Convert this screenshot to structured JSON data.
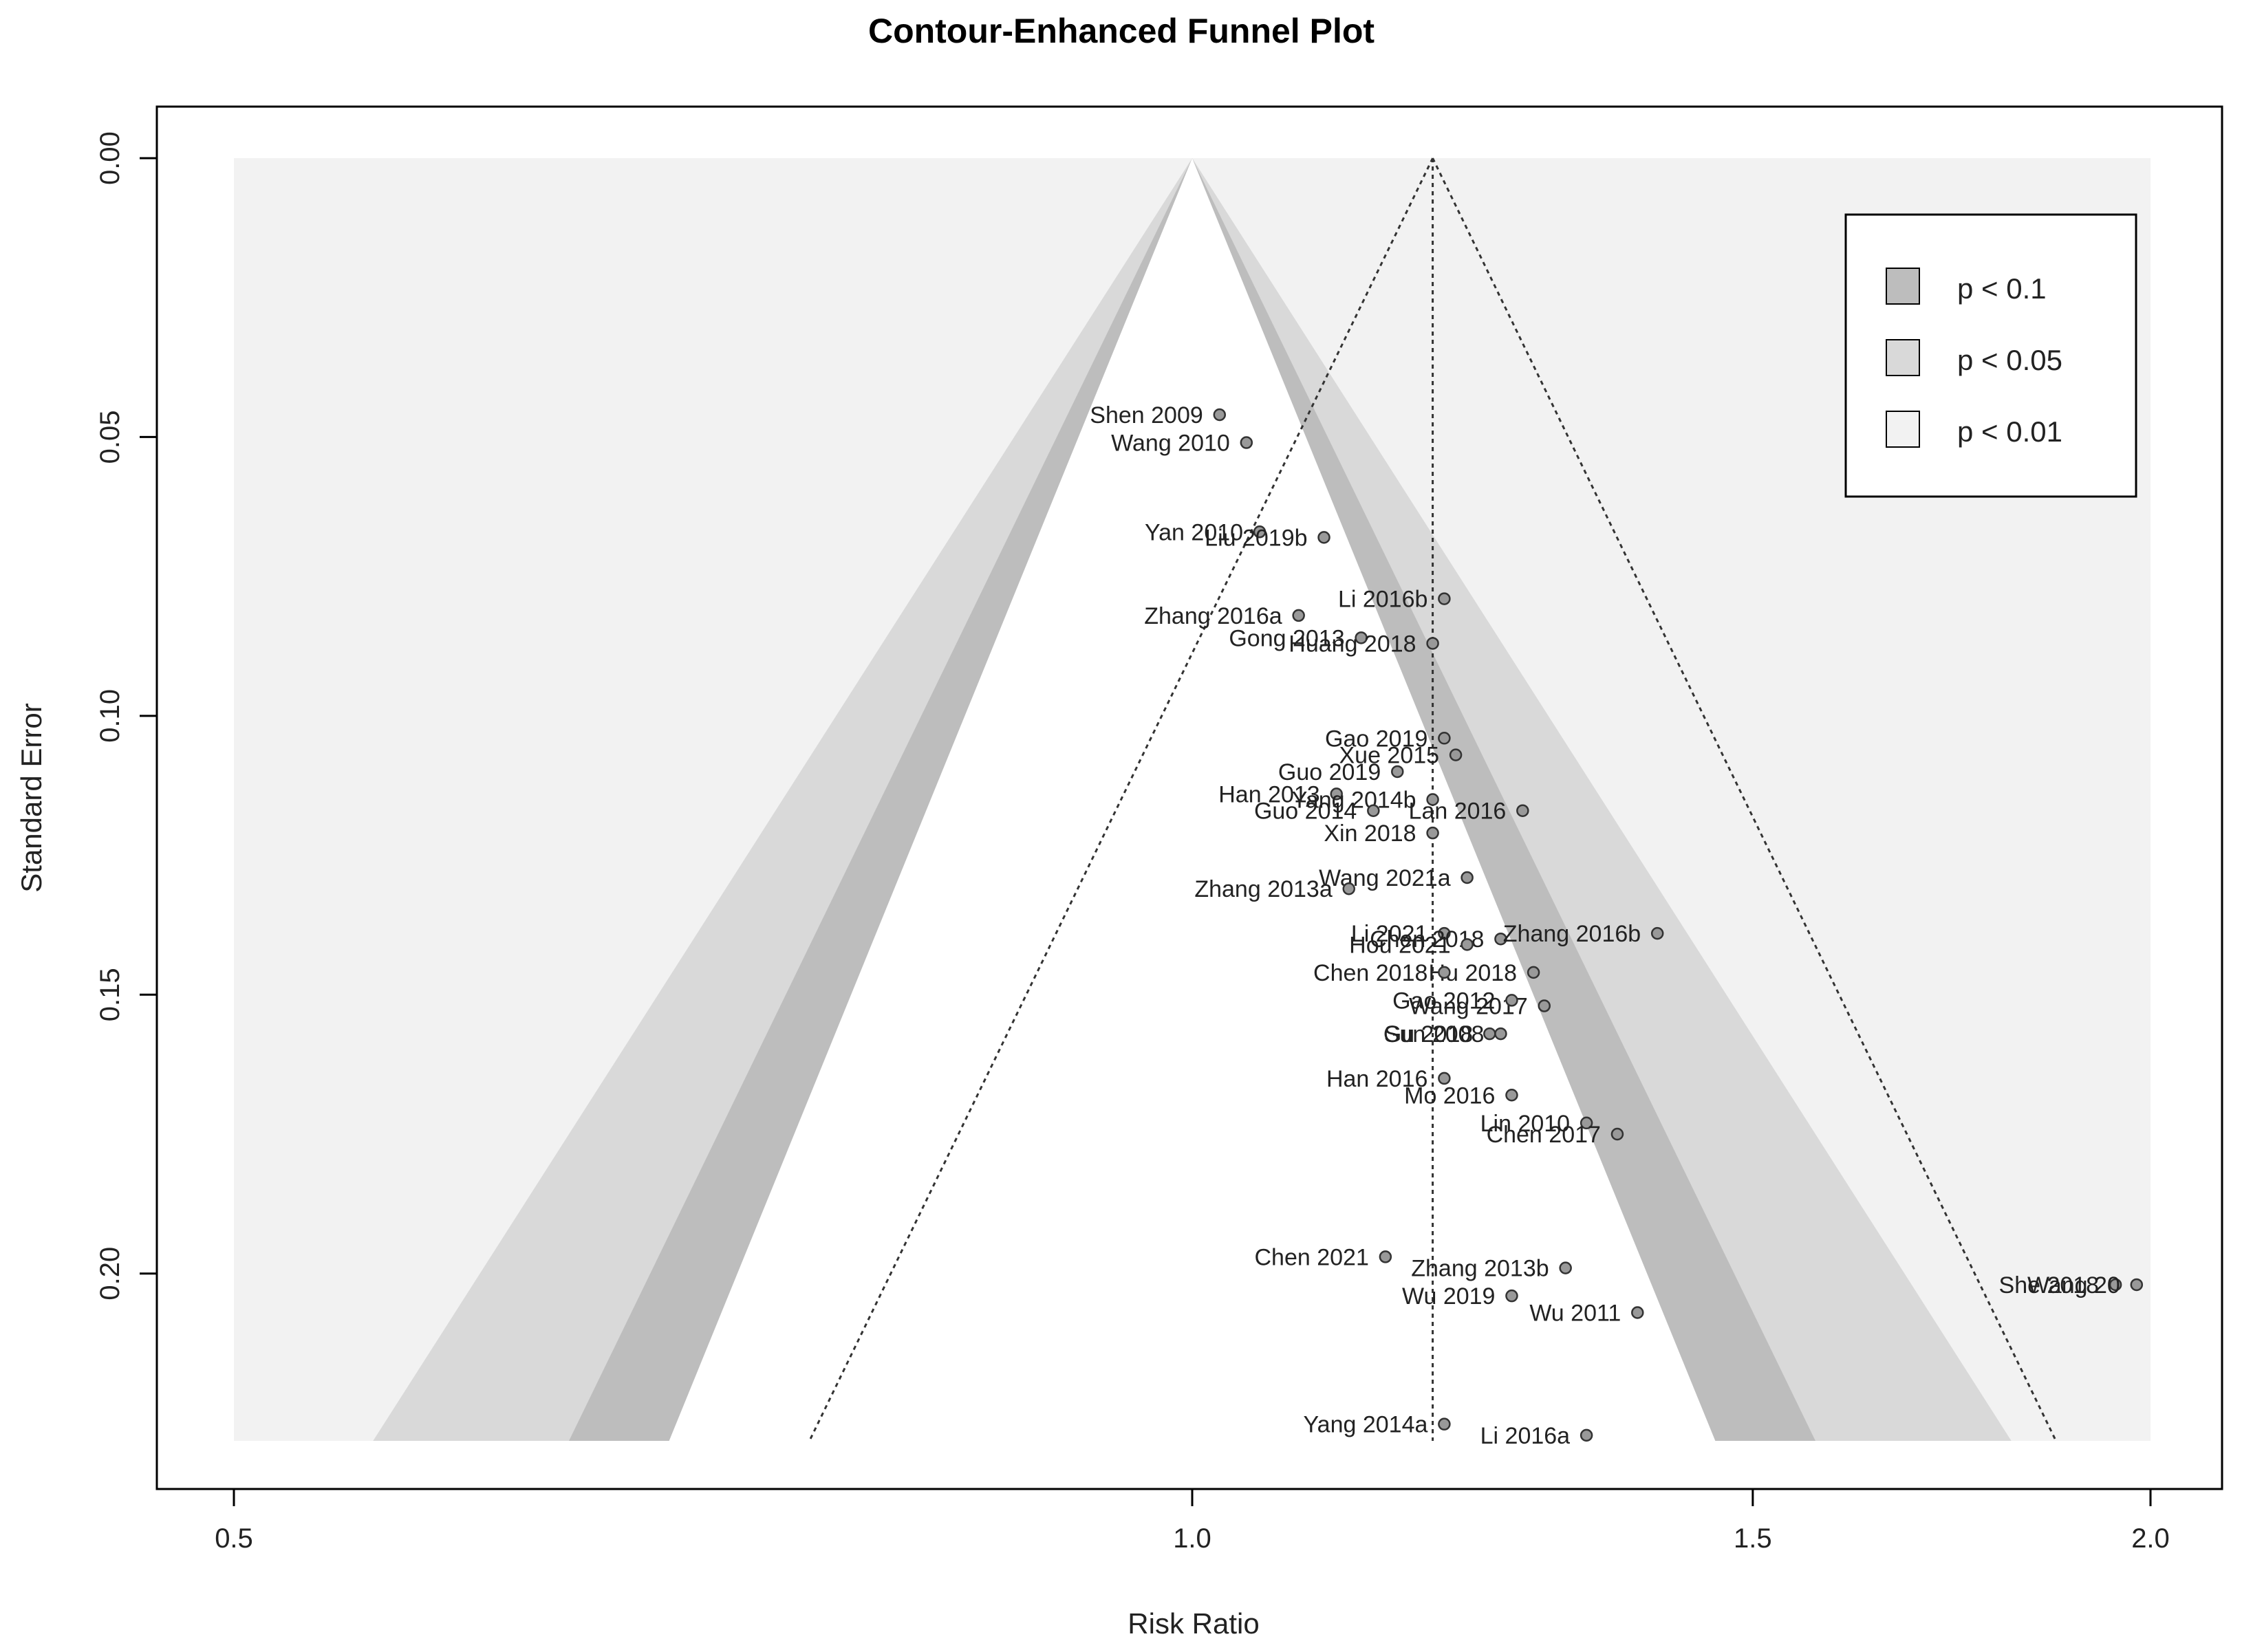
{
  "chart_data": {
    "type": "scatter",
    "title": "Contour-Enhanced Funnel Plot",
    "xlabel": "Risk Ratio",
    "ylabel": "Standard Error",
    "xscale": "log",
    "xlim": [
      0.5,
      2.0
    ],
    "ylim": [
      0.23,
      0.0
    ],
    "xticks": [
      "0.5",
      "1.0",
      "1.5",
      "2.0"
    ],
    "yticks": [
      "0.00",
      "0.05",
      "0.10",
      "0.15",
      "0.20"
    ],
    "pooled_rr": 1.19,
    "null_rr": 1.0,
    "legend": {
      "placement": "top-right",
      "entries": [
        {
          "label": "p < 0.1",
          "color": "#bdbdbd"
        },
        {
          "label": "p < 0.05",
          "color": "#d9d9d9"
        },
        {
          "label": "p < 0.01",
          "color": "#f2f2f2"
        }
      ]
    },
    "colors": {
      "background": "#f2f2f2",
      "inner": "#ffffff",
      "p10": "#bdbdbd",
      "p05": "#d9d9d9",
      "point": "#999999"
    },
    "points": [
      {
        "study": "Shen 2009",
        "rr": 1.02,
        "se": 0.046
      },
      {
        "study": "Wang 2010",
        "rr": 1.04,
        "se": 0.051
      },
      {
        "study": "Yan 2010",
        "rr": 1.05,
        "se": 0.067
      },
      {
        "study": "Liu 2019b",
        "rr": 1.1,
        "se": 0.068
      },
      {
        "study": "Li 2016b",
        "rr": 1.2,
        "se": 0.079
      },
      {
        "study": "Zhang 2016a",
        "rr": 1.08,
        "se": 0.082
      },
      {
        "study": "Gong 2013",
        "rr": 1.13,
        "se": 0.086
      },
      {
        "study": "Huang 2018",
        "rr": 1.19,
        "se": 0.087
      },
      {
        "study": "Gao 2019",
        "rr": 1.2,
        "se": 0.104
      },
      {
        "study": "Xue 2015",
        "rr": 1.21,
        "se": 0.107
      },
      {
        "study": "Guo 2019",
        "rr": 1.16,
        "se": 0.11
      },
      {
        "study": "Han 2013",
        "rr": 1.11,
        "se": 0.114
      },
      {
        "study": "Yang 2014b",
        "rr": 1.19,
        "se": 0.115
      },
      {
        "study": "Guo 2014",
        "rr": 1.14,
        "se": 0.117
      },
      {
        "study": "Lan 2016",
        "rr": 1.27,
        "se": 0.117
      },
      {
        "study": "Xin 2018",
        "rr": 1.19,
        "se": 0.121
      },
      {
        "study": "Wang 2021a",
        "rr": 1.22,
        "se": 0.129
      },
      {
        "study": "Zhang 2013a",
        "rr": 1.12,
        "se": 0.131
      },
      {
        "study": "Li 2021",
        "rr": 1.2,
        "se": 0.139
      },
      {
        "study": "Chen 2018",
        "rr": 1.25,
        "se": 0.14
      },
      {
        "study": "Zhang 2016b",
        "rr": 1.4,
        "se": 0.139
      },
      {
        "study": "Hou 2021",
        "rr": 1.22,
        "se": 0.141
      },
      {
        "study": "Hu 2018",
        "rr": 1.28,
        "se": 0.146
      },
      {
        "study": "Chen 2018",
        "rr": 1.2,
        "se": 0.146
      },
      {
        "study": "Wang 2017",
        "rr": 1.29,
        "se": 0.152
      },
      {
        "study": "Gao 2012",
        "rr": 1.26,
        "se": 0.151
      },
      {
        "study": "Sun 2008",
        "rr": 1.25,
        "se": 0.157
      },
      {
        "study": "Gu 2018",
        "rr": 1.24,
        "se": 0.157
      },
      {
        "study": "Han 2016",
        "rr": 1.2,
        "se": 0.165
      },
      {
        "study": "Mo 2016",
        "rr": 1.26,
        "se": 0.168
      },
      {
        "study": "Lin 2010",
        "rr": 1.33,
        "se": 0.173
      },
      {
        "study": "Chen 2017",
        "rr": 1.36,
        "se": 0.175
      },
      {
        "study": "Chen 2021",
        "rr": 1.15,
        "se": 0.197
      },
      {
        "study": "Zhang 2013b",
        "rr": 1.31,
        "se": 0.199
      },
      {
        "study": "Wu 2019",
        "rr": 1.26,
        "se": 0.204
      },
      {
        "study": "Wu 2011",
        "rr": 1.38,
        "se": 0.207
      },
      {
        "study": "She 2018",
        "rr": 1.95,
        "se": 0.202
      },
      {
        "study": "Wang 20",
        "rr": 1.98,
        "se": 0.202
      },
      {
        "study": "Yang 2014a",
        "rr": 1.2,
        "se": 0.227
      },
      {
        "study": "Li 2016a",
        "rr": 1.33,
        "se": 0.229
      }
    ]
  }
}
